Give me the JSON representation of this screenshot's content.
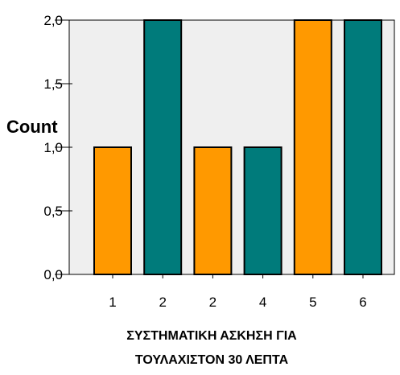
{
  "chart_data": {
    "type": "bar",
    "categories": [
      "1",
      "2",
      "2",
      "4",
      "5",
      "6"
    ],
    "values": [
      1,
      2,
      1,
      1,
      2,
      2
    ],
    "bar_colors": [
      "#ff9900",
      "#007b7b",
      "#ff9900",
      "#007b7b",
      "#ff9900",
      "#007b7b"
    ],
    "ylabel": "Count",
    "xlabel_lines": [
      "ΣΥΣΤΗΜΑΤΙΚΗ ΑΣΚΗΣΗ ΓΙΑ",
      "ΤΟΥΛΑΧΙΣΤΟΝ 30 ΛΕΠΤΑ"
    ],
    "ylim": [
      0,
      2
    ],
    "yticks": [
      0,
      0.5,
      1,
      1.5,
      2
    ],
    "ytick_labels": [
      "0,0",
      "0,5",
      "1,0",
      "1,5",
      "2,0"
    ],
    "plot_background": "#efefef",
    "grid": false
  }
}
